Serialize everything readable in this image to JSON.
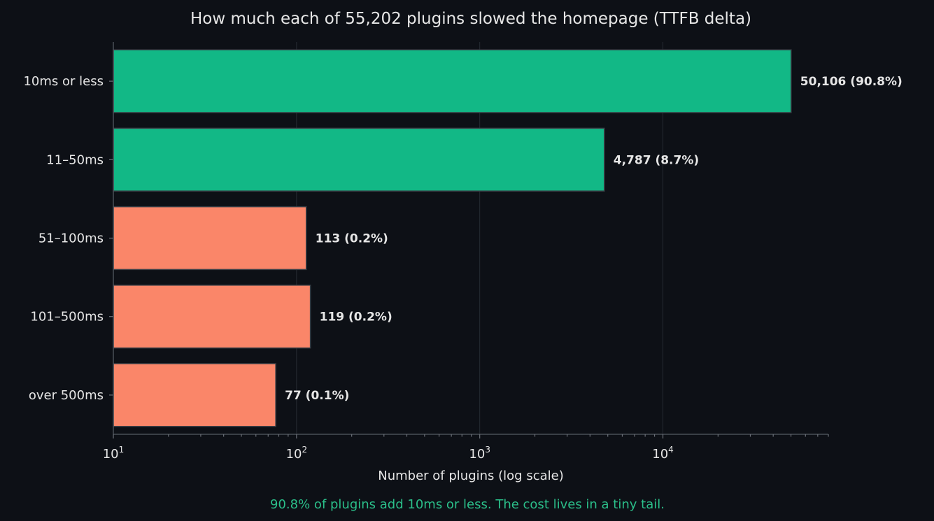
{
  "chart_data": {
    "type": "bar",
    "orientation": "horizontal",
    "title": "How much each of 55,202 plugins slowed the homepage (TTFB delta)",
    "categories": [
      "10ms or less",
      "11–50ms",
      "51–100ms",
      "101–500ms",
      "over 500ms"
    ],
    "values": [
      50106,
      4787,
      113,
      119,
      77
    ],
    "data_labels": [
      "50,106  (90.8%)",
      "4,787  (8.7%)",
      "113  (0.2%)",
      "119  (0.2%)",
      "77  (0.1%)"
    ],
    "bar_colors": [
      "#12b886",
      "#12b886",
      "#fa8669",
      "#fa8669",
      "#fa8669"
    ],
    "xlabel": "Number of plugins (log scale)",
    "ylabel": "",
    "x_scale": "log",
    "xlim": [
      10,
      80000
    ],
    "x_ticks": [
      {
        "value": 10,
        "base": "10",
        "exp": "1"
      },
      {
        "value": 100,
        "base": "10",
        "exp": "2"
      },
      {
        "value": 1000,
        "base": "10",
        "exp": "3"
      },
      {
        "value": 10000,
        "base": "10",
        "exp": "4"
      }
    ],
    "grid": "vertical",
    "legend": "none",
    "footnote": "90.8% of plugins add 10ms or less. The cost lives in a tiny tail."
  },
  "colors": {
    "background": "#0d1016",
    "text": "#e6e6e6",
    "green": "#12b886",
    "salmon": "#fa8669",
    "footnote": "#2bbf8a"
  }
}
